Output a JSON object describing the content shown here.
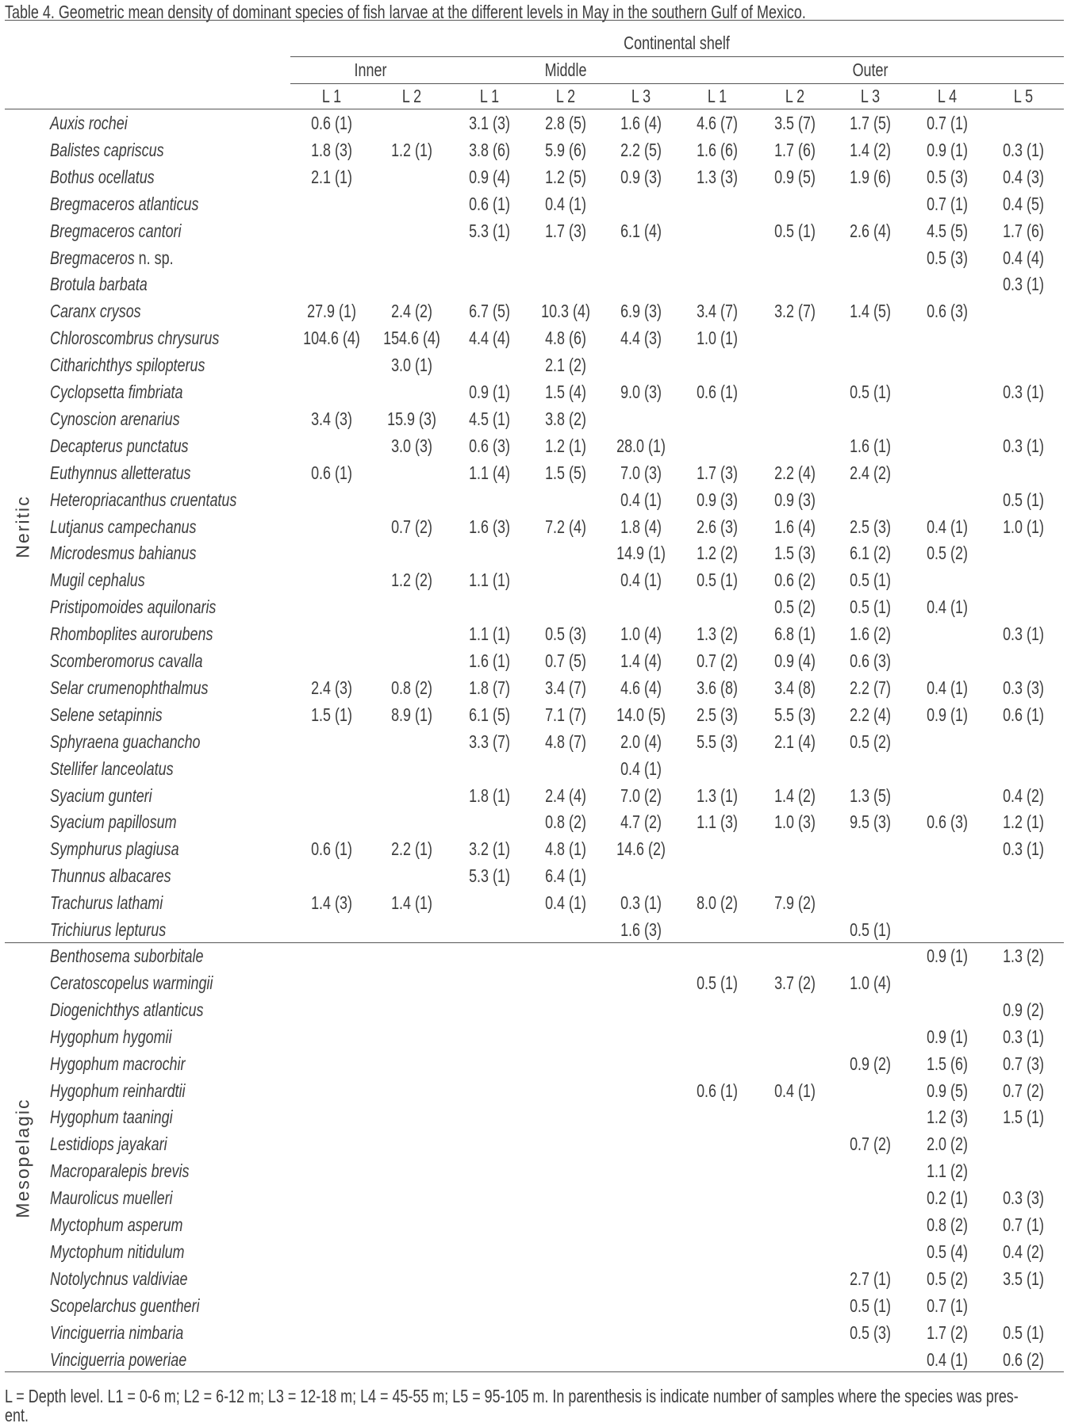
{
  "title": "Table 4. Geometric mean density of dominant species of fish larvae at the different levels in May in the southern Gulf of Mexico.",
  "header": {
    "top": "Continental shelf",
    "zones": [
      "Inner",
      "Middle",
      "Outer"
    ],
    "levels": [
      "L 1",
      "L 2",
      "L 1",
      "L 2",
      "L 3",
      "L 1",
      "L 2",
      "L 3",
      "L 4",
      "L 5"
    ]
  },
  "groups": [
    {
      "label": "Neritic",
      "rows": [
        {
          "name": "Auxis rochei",
          "values": [
            "0.6 (1)",
            "",
            "3.1 (3)",
            "2.8 (5)",
            "1.6 (4)",
            "4.6 (7)",
            "3.5 (7)",
            "1.7 (5)",
            "0.7 (1)",
            ""
          ]
        },
        {
          "name": "Balistes capriscus",
          "values": [
            "1.8 (3)",
            "1.2 (1)",
            "3.8 (6)",
            "5.9 (6)",
            "2.2 (5)",
            "1.6 (6)",
            "1.7 (6)",
            "1.4 (2)",
            "0.9 (1)",
            "0.3 (1)"
          ]
        },
        {
          "name": "Bothus ocellatus",
          "values": [
            "2.1 (1)",
            "",
            "0.9 (4)",
            "1.2 (5)",
            "0.9 (3)",
            "1.3 (3)",
            "0.9 (5)",
            "1.9 (6)",
            "0.5 (3)",
            "0.4 (3)"
          ]
        },
        {
          "name": "Bregmaceros atlanticus",
          "values": [
            "",
            "",
            "0.6 (1)",
            "0.4 (1)",
            "",
            "",
            "",
            "",
            "0.7 (1)",
            "0.4 (5)"
          ]
        },
        {
          "name": "Bregmaceros cantori",
          "values": [
            "",
            "",
            "5.3 (1)",
            "1.7 (3)",
            "6.1 (4)",
            "",
            "0.5 (1)",
            "2.6 (4)",
            "4.5 (5)",
            "1.7 (6)"
          ]
        },
        {
          "name": "Bregmaceros",
          "suffix": " n. sp.",
          "values": [
            "",
            "",
            "",
            "",
            "",
            "",
            "",
            "",
            "0.5 (3)",
            "0.4 (4)"
          ]
        },
        {
          "name": "Brotula barbata",
          "values": [
            "",
            "",
            "",
            "",
            "",
            "",
            "",
            "",
            "",
            "0.3 (1)"
          ]
        },
        {
          "name": "Caranx crysos",
          "values": [
            "27.9 (1)",
            "2.4 (2)",
            "6.7 (5)",
            "10.3 (4)",
            "6.9 (3)",
            "3.4 (7)",
            "3.2 (7)",
            "1.4 (5)",
            "0.6 (3)",
            ""
          ]
        },
        {
          "name": "Chloroscombrus chrysurus",
          "values": [
            "104.6 (4)",
            "154.6 (4)",
            "4.4 (4)",
            "4.8 (6)",
            "4.4 (3)",
            "1.0 (1)",
            "",
            "",
            "",
            ""
          ]
        },
        {
          "name": "Citharichthys spilopterus",
          "values": [
            "",
            "3.0 (1)",
            "",
            "2.1 (2)",
            "",
            "",
            "",
            "",
            "",
            ""
          ]
        },
        {
          "name": "Cyclopsetta fimbriata",
          "values": [
            "",
            "",
            "0.9 (1)",
            "1.5 (4)",
            "9.0 (3)",
            "0.6 (1)",
            "",
            "0.5 (1)",
            "",
            "0.3 (1)"
          ]
        },
        {
          "name": "Cynoscion arenarius",
          "values": [
            "3.4 (3)",
            "15.9 (3)",
            "4.5 (1)",
            "3.8 (2)",
            "",
            "",
            "",
            "",
            "",
            ""
          ]
        },
        {
          "name": "Decapterus punctatus",
          "values": [
            "",
            "3.0 (3)",
            "0.6 (3)",
            "1.2 (1)",
            "28.0 (1)",
            "",
            "",
            "1.6 (1)",
            "",
            "0.3 (1)"
          ]
        },
        {
          "name": "Euthynnus alletteratus",
          "values": [
            "0.6 (1)",
            "",
            "1.1 (4)",
            "1.5 (5)",
            "7.0 (3)",
            "1.7 (3)",
            "2.2 (4)",
            "2.4 (2)",
            "",
            ""
          ]
        },
        {
          "name": "Heteropriacanthus cruentatus",
          "values": [
            "",
            "",
            "",
            "",
            "0.4 (1)",
            "0.9 (3)",
            "0.9 (3)",
            "",
            "",
            "0.5 (1)"
          ]
        },
        {
          "name": "Lutjanus campechanus",
          "values": [
            "",
            "0.7 (2)",
            "1.6 (3)",
            "7.2 (4)",
            "1.8 (4)",
            "2.6 (3)",
            "1.6 (4)",
            "2.5 (3)",
            "0.4 (1)",
            "1.0 (1)"
          ]
        },
        {
          "name": "Microdesmus bahianus",
          "values": [
            "",
            "",
            "",
            "",
            "14.9 (1)",
            "1.2 (2)",
            "1.5 (3)",
            "6.1 (2)",
            "0.5 (2)",
            ""
          ]
        },
        {
          "name": "Mugil cephalus",
          "values": [
            "",
            "1.2 (2)",
            "1.1 (1)",
            "",
            "0.4 (1)",
            "0.5 (1)",
            "0.6 (2)",
            "0.5 (1)",
            "",
            ""
          ]
        },
        {
          "name": "Pristipomoides aquilonaris",
          "values": [
            "",
            "",
            "",
            "",
            "",
            "",
            "0.5 (2)",
            "0.5 (1)",
            "0.4 (1)",
            ""
          ]
        },
        {
          "name": "Rhomboplites aurorubens",
          "values": [
            "",
            "",
            "1.1 (1)",
            "0.5 (3)",
            "1.0 (4)",
            "1.3 (2)",
            "6.8 (1)",
            "1.6 (2)",
            "",
            "0.3 (1)"
          ]
        },
        {
          "name": "Scomberomorus cavalla",
          "values": [
            "",
            "",
            "1.6 (1)",
            "0.7 (5)",
            "1.4 (4)",
            "0.7 (2)",
            "0.9 (4)",
            "0.6 (3)",
            "",
            ""
          ]
        },
        {
          "name": "Selar crumenophthalmus",
          "values": [
            "2.4 (3)",
            "0.8 (2)",
            "1.8 (7)",
            "3.4 (7)",
            "4.6 (4)",
            "3.6 (8)",
            "3.4 (8)",
            "2.2 (7)",
            "0.4 (1)",
            "0.3 (3)"
          ]
        },
        {
          "name": "Selene setapinnis",
          "values": [
            "1.5 (1)",
            "8.9 (1)",
            "6.1 (5)",
            "7.1 (7)",
            "14.0 (5)",
            "2.5 (3)",
            "5.5 (3)",
            "2.2 (4)",
            "0.9 (1)",
            "0.6 (1)"
          ]
        },
        {
          "name": "Sphyraena guachancho",
          "values": [
            "",
            "",
            "3.3 (7)",
            "4.8 (7)",
            "2.0 (4)",
            "5.5 (3)",
            "2.1 (4)",
            "0.5 (2)",
            "",
            ""
          ]
        },
        {
          "name": "Stellifer lanceolatus",
          "values": [
            "",
            "",
            "",
            "",
            "0.4 (1)",
            "",
            "",
            "",
            "",
            ""
          ]
        },
        {
          "name": "Syacium gunteri",
          "values": [
            "",
            "",
            "1.8 (1)",
            "2.4 (4)",
            "7.0 (2)",
            "1.3 (1)",
            "1.4 (2)",
            "1.3 (5)",
            "",
            "0.4 (2)"
          ]
        },
        {
          "name": "Syacium papillosum",
          "values": [
            "",
            "",
            "",
            "0.8 (2)",
            "4.7 (2)",
            "1.1 (3)",
            "1.0 (3)",
            "9.5 (3)",
            "0.6 (3)",
            "1.2 (1)"
          ]
        },
        {
          "name": "Symphurus plagiusa",
          "values": [
            "0.6 (1)",
            "2.2 (1)",
            "3.2 (1)",
            "4.8 (1)",
            "14.6 (2)",
            "",
            "",
            "",
            "",
            "0.3 (1)"
          ]
        },
        {
          "name": "Thunnus albacares",
          "values": [
            "",
            "",
            "5.3 (1)",
            "6.4 (1)",
            "",
            "",
            "",
            "",
            "",
            ""
          ]
        },
        {
          "name": "Trachurus lathami",
          "values": [
            "1.4 (3)",
            "1.4 (1)",
            "",
            "0.4 (1)",
            "0.3 (1)",
            "8.0 (2)",
            "7.9 (2)",
            "",
            "",
            ""
          ]
        },
        {
          "name": "Trichiurus lepturus",
          "values": [
            "",
            "",
            "",
            "",
            "1.6 (3)",
            "",
            "",
            "0.5 (1)",
            "",
            ""
          ]
        }
      ]
    },
    {
      "label": "Mesopelagic",
      "rows": [
        {
          "name": "Benthosema suborbitale",
          "values": [
            "",
            "",
            "",
            "",
            "",
            "",
            "",
            "",
            "0.9 (1)",
            "1.3 (2)"
          ]
        },
        {
          "name": "Ceratoscopelus warmingii",
          "values": [
            "",
            "",
            "",
            "",
            "",
            "0.5 (1)",
            "3.7 (2)",
            "1.0 (4)",
            "",
            ""
          ]
        },
        {
          "name": "Diogenichthys atlanticus",
          "values": [
            "",
            "",
            "",
            "",
            "",
            "",
            "",
            "",
            "",
            "0.9 (2)"
          ]
        },
        {
          "name": "Hygophum hygomii",
          "values": [
            "",
            "",
            "",
            "",
            "",
            "",
            "",
            "",
            "0.9 (1)",
            "0.3 (1)"
          ]
        },
        {
          "name": "Hygophum macrochir",
          "values": [
            "",
            "",
            "",
            "",
            "",
            "",
            "",
            "0.9 (2)",
            "1.5 (6)",
            "0.7 (3)"
          ]
        },
        {
          "name": "Hygophum reinhardtii",
          "values": [
            "",
            "",
            "",
            "",
            "",
            "0.6 (1)",
            "0.4 (1)",
            "",
            "0.9 (5)",
            "0.7 (2)"
          ]
        },
        {
          "name": "Hygophum taaningi",
          "values": [
            "",
            "",
            "",
            "",
            "",
            "",
            "",
            "",
            "1.2 (3)",
            "1.5 (1)"
          ]
        },
        {
          "name": "Lestidiops jayakari",
          "values": [
            "",
            "",
            "",
            "",
            "",
            "",
            "",
            "0.7 (2)",
            "2.0 (2)",
            ""
          ]
        },
        {
          "name": "Macroparalepis brevis",
          "values": [
            "",
            "",
            "",
            "",
            "",
            "",
            "",
            "",
            "1.1 (2)",
            ""
          ]
        },
        {
          "name": "Maurolicus muelleri",
          "values": [
            "",
            "",
            "",
            "",
            "",
            "",
            "",
            "",
            "0.2 (1)",
            "0.3 (3)"
          ]
        },
        {
          "name": "Myctophum asperum",
          "values": [
            "",
            "",
            "",
            "",
            "",
            "",
            "",
            "",
            "0.8 (2)",
            "0.7 (1)"
          ]
        },
        {
          "name": "Myctophum nitidulum",
          "values": [
            "",
            "",
            "",
            "",
            "",
            "",
            "",
            "",
            "0.5 (4)",
            "0.4 (2)"
          ]
        },
        {
          "name": "Notolychnus valdiviae",
          "values": [
            "",
            "",
            "",
            "",
            "",
            "",
            "",
            "2.7 (1)",
            "0.5 (2)",
            "3.5 (1)"
          ]
        },
        {
          "name": "Scopelarchus guentheri",
          "values": [
            "",
            "",
            "",
            "",
            "",
            "",
            "",
            "0.5 (1)",
            "0.7 (1)",
            ""
          ]
        },
        {
          "name": "Vinciguerria nimbaria",
          "values": [
            "",
            "",
            "",
            "",
            "",
            "",
            "",
            "0.5 (3)",
            "1.7 (2)",
            "0.5 (1)"
          ]
        },
        {
          "name": "Vinciguerria poweriae",
          "values": [
            "",
            "",
            "",
            "",
            "",
            "",
            "",
            "",
            "0.4 (1)",
            "0.6 (2)"
          ]
        }
      ]
    }
  ],
  "footnote": [
    "L = Depth level. L1 = 0-6 m; L2 = 6-12 m; L3 = 12-18 m; L4 = 45-55 m; L5 = 95-105 m. In parenthesis is indicate number of samples where the species was pres-",
    "ent."
  ]
}
